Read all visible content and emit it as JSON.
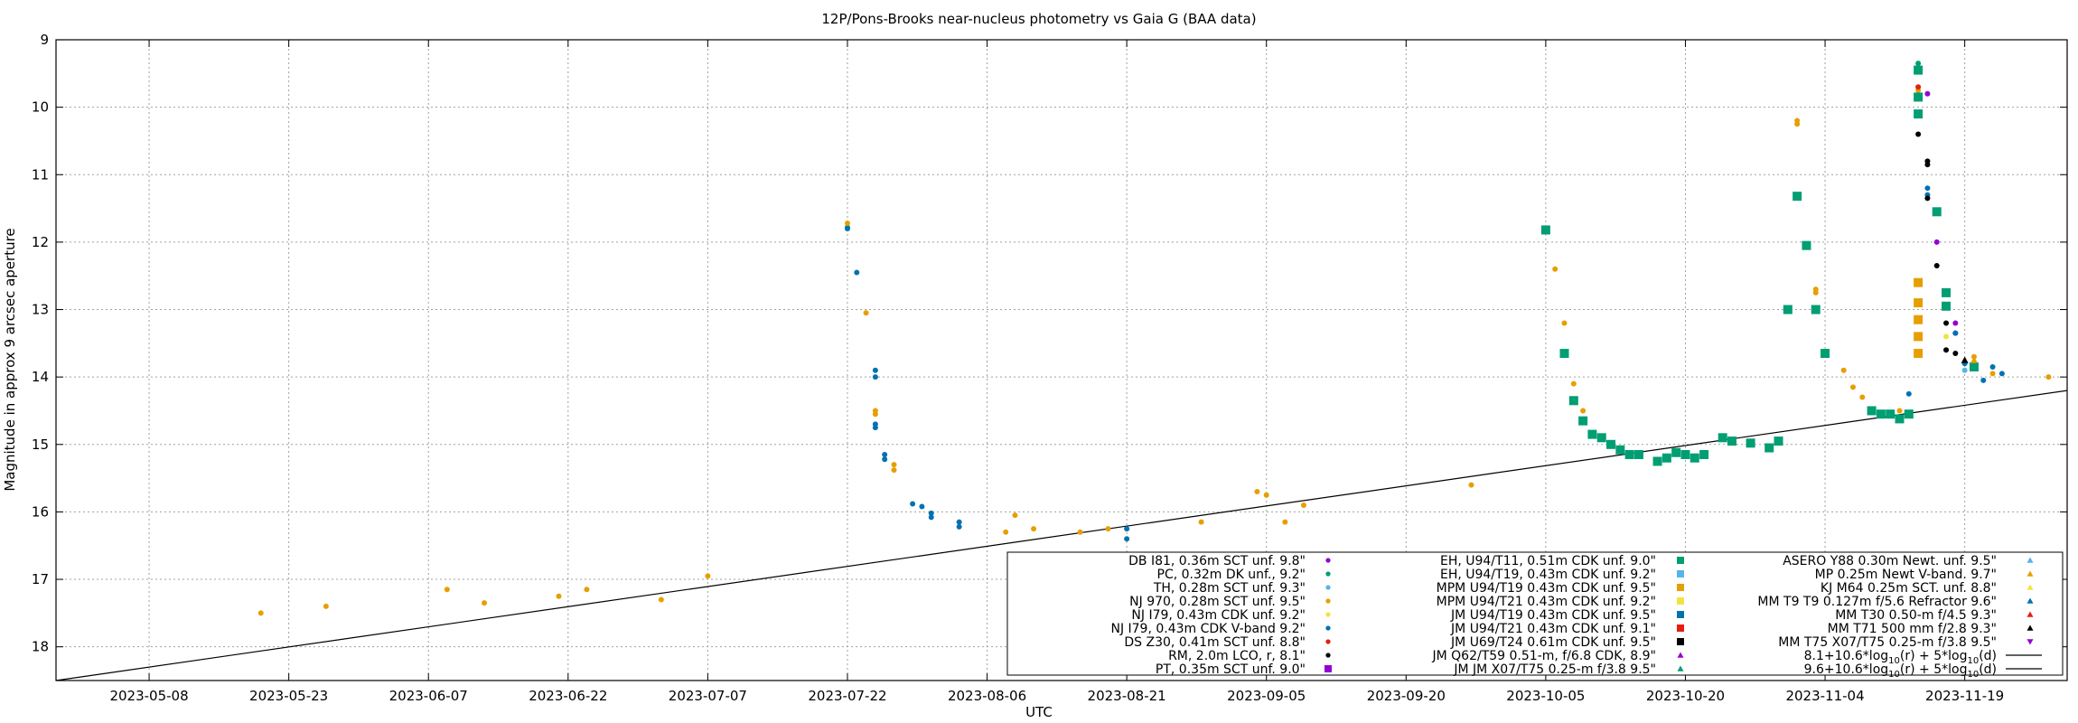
{
  "chart_data": {
    "type": "scatter",
    "title": "12P/Pons-Brooks near-nucleus photometry vs Gaia G (BAA data)",
    "xlabel": "UTC",
    "ylabel": "Magnitude in approx 9 arcsec aperture",
    "x_type": "date",
    "xlim": [
      "2023-04-28",
      "2023-11-30"
    ],
    "ylim": [
      18.5,
      9
    ],
    "y_reversed": true,
    "grid": true,
    "legend_position": "bottom-right",
    "x_ticks": [
      "2023-05-08",
      "2023-05-23",
      "2023-06-07",
      "2023-06-22",
      "2023-07-07",
      "2023-07-22",
      "2023-08-06",
      "2023-08-21",
      "2023-09-05",
      "2023-09-20",
      "2023-10-05",
      "2023-10-20",
      "2023-11-04",
      "2023-11-19"
    ],
    "y_ticks": [
      9,
      10,
      11,
      12,
      13,
      14,
      15,
      16,
      17,
      18
    ],
    "series": [
      {
        "name": "DB I81, 0.36m SCT unf. 9.8\"",
        "marker": "circle",
        "color": "#9400d3",
        "points": [
          [
            "2023-11-15",
            9.8
          ],
          [
            "2023-11-16",
            12.0
          ],
          [
            "2023-11-18",
            13.2
          ],
          [
            "2023-11-18",
            13.35
          ]
        ]
      },
      {
        "name": "PC, 0.32m DK unf., 9.2\"",
        "marker": "circle",
        "color": "#009e73",
        "points": [
          [
            "2023-07-22",
            11.78
          ],
          [
            "2023-11-14",
            9.35
          ]
        ]
      },
      {
        "name": "TH, 0.28m SCT unf. 9.3\"",
        "marker": "circle",
        "color": "#56b4e9",
        "points": [
          [
            "2023-11-19",
            13.9
          ]
        ]
      },
      {
        "name": "NJ 970, 0.28m SCT unf. 9.5\"",
        "marker": "circle",
        "color": "#e69f00",
        "points": [
          [
            "2023-05-20",
            17.5
          ],
          [
            "2023-05-27",
            17.4
          ],
          [
            "2023-06-09",
            17.15
          ],
          [
            "2023-06-13",
            17.35
          ],
          [
            "2023-06-21",
            17.25
          ],
          [
            "2023-06-24",
            17.15
          ],
          [
            "2023-07-02",
            17.3
          ],
          [
            "2023-07-07",
            16.95
          ],
          [
            "2023-07-22",
            11.72
          ],
          [
            "2023-07-24",
            13.05
          ],
          [
            "2023-07-25",
            14.5
          ],
          [
            "2023-07-25",
            14.55
          ],
          [
            "2023-07-27",
            15.3
          ],
          [
            "2023-07-27",
            15.38
          ],
          [
            "2023-08-08",
            16.3
          ],
          [
            "2023-08-09",
            16.05
          ],
          [
            "2023-08-11",
            16.25
          ],
          [
            "2023-08-16",
            16.3
          ],
          [
            "2023-08-19",
            16.25
          ],
          [
            "2023-08-29",
            16.15
          ],
          [
            "2023-09-04",
            15.7
          ],
          [
            "2023-09-05",
            15.75
          ],
          [
            "2023-09-07",
            16.15
          ],
          [
            "2023-09-09",
            15.9
          ],
          [
            "2023-09-27",
            15.6
          ],
          [
            "2023-10-06",
            12.4
          ],
          [
            "2023-10-07",
            13.2
          ],
          [
            "2023-10-08",
            14.1
          ],
          [
            "2023-10-09",
            14.5
          ],
          [
            "2023-10-18",
            15.18
          ],
          [
            "2023-10-25",
            14.95
          ],
          [
            "2023-11-01",
            10.25
          ],
          [
            "2023-11-01",
            10.2
          ],
          [
            "2023-11-03",
            12.7
          ],
          [
            "2023-11-03",
            12.75
          ],
          [
            "2023-11-06",
            13.9
          ],
          [
            "2023-11-07",
            14.15
          ],
          [
            "2023-11-08",
            14.3
          ],
          [
            "2023-11-12",
            14.5
          ],
          [
            "2023-11-14",
            9.75
          ],
          [
            "2023-11-20",
            13.7
          ],
          [
            "2023-11-22",
            13.95
          ],
          [
            "2023-11-28",
            14.0
          ]
        ]
      },
      {
        "name": "NJ I79, 0.43m CDK unf. 9.2\"",
        "marker": "circle",
        "color": "#f0e442",
        "points": [
          [
            "2023-11-17",
            13.4
          ]
        ]
      },
      {
        "name": "NJ I79, 0.43m CDK V-band 9.2\"",
        "marker": "circle",
        "color": "#0072b2",
        "points": [
          [
            "2023-07-22",
            11.8
          ],
          [
            "2023-07-23",
            12.45
          ],
          [
            "2023-07-25",
            13.9
          ],
          [
            "2023-07-25",
            14.0
          ],
          [
            "2023-07-25",
            14.7
          ],
          [
            "2023-07-25",
            14.75
          ],
          [
            "2023-07-26",
            15.15
          ],
          [
            "2023-07-26",
            15.22
          ],
          [
            "2023-07-29",
            15.88
          ],
          [
            "2023-07-30",
            15.92
          ],
          [
            "2023-07-31",
            16.02
          ],
          [
            "2023-07-31",
            16.08
          ],
          [
            "2023-08-03",
            16.15
          ],
          [
            "2023-08-03",
            16.22
          ],
          [
            "2023-08-21",
            16.25
          ],
          [
            "2023-08-21",
            16.4
          ],
          [
            "2023-11-13",
            14.25
          ],
          [
            "2023-11-15",
            11.2
          ],
          [
            "2023-11-15",
            11.3
          ],
          [
            "2023-11-18",
            13.35
          ],
          [
            "2023-11-19",
            13.8
          ],
          [
            "2023-11-20",
            13.85
          ],
          [
            "2023-11-21",
            14.05
          ],
          [
            "2023-11-22",
            13.85
          ],
          [
            "2023-11-23",
            13.95
          ]
        ]
      },
      {
        "name": "DS Z30, 0.41m SCT unf. 8.8\"",
        "marker": "circle",
        "color": "#e51e10",
        "points": [
          [
            "2023-11-14",
            9.7
          ]
        ]
      },
      {
        "name": "RM, 2.0m LCO, r, 8.1\"",
        "marker": "circle",
        "color": "#000000",
        "points": [
          [
            "2023-11-14",
            10.4
          ],
          [
            "2023-11-15",
            10.8
          ],
          [
            "2023-11-15",
            10.85
          ],
          [
            "2023-11-15",
            11.35
          ],
          [
            "2023-11-16",
            12.35
          ],
          [
            "2023-11-17",
            13.2
          ],
          [
            "2023-11-17",
            13.6
          ],
          [
            "2023-11-18",
            13.65
          ]
        ]
      },
      {
        "name": "PT, 0.35m SCT unf. 9.0\"",
        "marker": "square",
        "color": "#9400d3",
        "points": []
      },
      {
        "name": "EH, U94/T11, 0.51m CDK unf. 9.0\"",
        "marker": "square",
        "color": "#009e73",
        "points": [
          [
            "2023-10-05",
            11.82
          ],
          [
            "2023-10-07",
            13.65
          ],
          [
            "2023-10-08",
            14.35
          ],
          [
            "2023-10-09",
            14.65
          ],
          [
            "2023-10-10",
            14.85
          ],
          [
            "2023-10-11",
            14.9
          ],
          [
            "2023-10-12",
            15.0
          ],
          [
            "2023-10-13",
            15.08
          ],
          [
            "2023-10-14",
            15.15
          ],
          [
            "2023-10-15",
            15.15
          ],
          [
            "2023-10-17",
            15.25
          ],
          [
            "2023-10-18",
            15.2
          ],
          [
            "2023-10-19",
            15.12
          ],
          [
            "2023-10-20",
            15.15
          ],
          [
            "2023-10-21",
            15.2
          ],
          [
            "2023-10-22",
            15.15
          ],
          [
            "2023-10-24",
            14.9
          ],
          [
            "2023-10-25",
            14.95
          ],
          [
            "2023-10-27",
            14.98
          ],
          [
            "2023-10-29",
            15.05
          ],
          [
            "2023-10-30",
            14.95
          ],
          [
            "2023-10-31",
            13.0
          ],
          [
            "2023-11-01",
            11.32
          ],
          [
            "2023-11-02",
            12.05
          ],
          [
            "2023-11-03",
            13.0
          ],
          [
            "2023-11-04",
            13.65
          ],
          [
            "2023-11-09",
            14.5
          ],
          [
            "2023-11-10",
            14.55
          ],
          [
            "2023-11-11",
            14.55
          ],
          [
            "2023-11-12",
            14.62
          ],
          [
            "2023-11-13",
            14.55
          ],
          [
            "2023-11-14",
            9.45
          ],
          [
            "2023-11-14",
            9.85
          ],
          [
            "2023-11-14",
            10.1
          ],
          [
            "2023-11-16",
            11.55
          ],
          [
            "2023-11-17",
            12.75
          ],
          [
            "2023-11-17",
            12.95
          ],
          [
            "2023-11-20",
            13.85
          ]
        ]
      },
      {
        "name": "EH, U94/T19, 0.43m CDK unf. 9.2\"",
        "marker": "square",
        "color": "#56b4e9",
        "points": []
      },
      {
        "name": "MPM U94/T19 0.43m CDK unf. 9.5\"",
        "marker": "square",
        "color": "#e69f00",
        "points": [
          [
            "2023-11-14",
            12.6
          ],
          [
            "2023-11-14",
            12.9
          ],
          [
            "2023-11-14",
            13.15
          ],
          [
            "2023-11-14",
            13.4
          ],
          [
            "2023-11-14",
            13.65
          ]
        ]
      },
      {
        "name": "MPM U94/T21 0.43m CDK unf. 9.2\"",
        "marker": "square",
        "color": "#f0e442",
        "points": []
      },
      {
        "name": "JM U94/T19 0.43m CDK unf. 9.5\"",
        "marker": "square",
        "color": "#0072b2",
        "points": []
      },
      {
        "name": "JM U94/T21 0.43m CDK unf. 9.1\"",
        "marker": "square",
        "color": "#e51e10",
        "points": []
      },
      {
        "name": "JM U69/T24 0.61m CDK unf. 9.5\"",
        "marker": "square",
        "color": "#000000",
        "points": []
      },
      {
        "name": "JM Q62/T59 0.51-m, f/6.8 CDK, 8.9\"",
        "marker": "triangle-up",
        "color": "#9400d3",
        "points": []
      },
      {
        "name": "JM JM X07/T75 0.25-m f/3.8 9.5\"",
        "marker": "triangle-up",
        "color": "#009e73",
        "points": []
      },
      {
        "name": "ASERO Y88 0.30m Newt. unf. 9.5\"",
        "marker": "triangle-up",
        "color": "#56b4e9",
        "points": []
      },
      {
        "name": "MP 0.25m Newt V-band. 9.7\"",
        "marker": "triangle-up",
        "color": "#e69f00",
        "points": [
          [
            "2023-11-20",
            13.75
          ]
        ]
      },
      {
        "name": "KJ M64 0.25m SCT. unf. 8.8\"",
        "marker": "triangle-up",
        "color": "#f0e442",
        "points": []
      },
      {
        "name": "MM T9 T9 0.127m f/5.6 Refractor 9.6\"",
        "marker": "triangle-up",
        "color": "#0072b2",
        "points": []
      },
      {
        "name": "MM T30 0.50-m f/4.5 9.3\"",
        "marker": "triangle-up",
        "color": "#e51e10",
        "points": []
      },
      {
        "name": "MM T71 500 mm f/2.8 9.3\"",
        "marker": "triangle-up",
        "color": "#000000",
        "points": [
          [
            "2023-11-19",
            13.75
          ]
        ]
      },
      {
        "name": "MM T75 X07/T75 0.25-m f/3.8 9.5\"",
        "marker": "triangle-down",
        "color": "#9400d3",
        "points": []
      }
    ],
    "lines": [
      {
        "name": "8.1+10.6*log10(r) + 5*log10(d)",
        "color": "#000000",
        "points": [
          [
            "2023-04-28",
            18.5
          ],
          [
            "2023-11-30",
            14.2
          ]
        ]
      },
      {
        "name": "9.6+10.6*log10(r) + 5*log10(d)",
        "color": "#000000",
        "points": []
      }
    ],
    "legend_lines": [
      {
        "text": "8.1+10.6*log",
        "sub": "10",
        "mid": "(r) + 5*log",
        "sub2": "10",
        "end": "(d)"
      },
      {
        "text": "9.6+10.6*log",
        "sub": "10",
        "mid": "(r) + 5*log",
        "sub2": "10",
        "end": "(d)"
      }
    ]
  }
}
